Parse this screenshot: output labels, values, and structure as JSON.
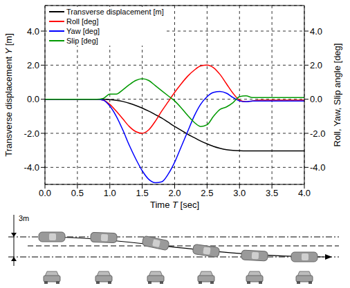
{
  "chart_data": {
    "type": "line",
    "x_label": "Time T [sec]",
    "y_label": "Transverse displacement Y [m]",
    "y2_label": "Roll, Yaw, Slip angle [deg]",
    "x": [
      0,
      0.1,
      0.2,
      0.3,
      0.4,
      0.5,
      0.6,
      0.7,
      0.8,
      0.9,
      1.0,
      1.1,
      1.2,
      1.3,
      1.4,
      1.5,
      1.6,
      1.7,
      1.8,
      1.9,
      2.0,
      2.1,
      2.2,
      2.3,
      2.4,
      2.5,
      2.6,
      2.7,
      2.8,
      2.9,
      3.0,
      3.1,
      3.2,
      3.3,
      3.4,
      3.5,
      3.6,
      3.7,
      3.8,
      3.9,
      4.0
    ],
    "xlim": [
      0,
      4
    ],
    "xticks": [
      {
        "value": 0,
        "label": "0.0"
      },
      {
        "value": 0.5,
        "label": "0.5"
      },
      {
        "value": 1,
        "label": "1.0"
      },
      {
        "value": 1.5,
        "label": "1.5"
      },
      {
        "value": 2,
        "label": "2.0"
      },
      {
        "value": 2.5,
        "label": "2.5"
      },
      {
        "value": 3,
        "label": "3.0"
      },
      {
        "value": 3.5,
        "label": "3.5"
      },
      {
        "value": 4,
        "label": "4.0"
      }
    ],
    "ylim": [
      -5,
      5.5
    ],
    "yticks": [
      {
        "value": -4,
        "label": "-4.0"
      },
      {
        "value": -2,
        "label": "-2.0"
      },
      {
        "value": 0,
        "label": "0.0"
      },
      {
        "value": 2,
        "label": "2.0"
      },
      {
        "value": 4,
        "label": "4.0"
      }
    ],
    "y2lim": [
      -5,
      5.5
    ],
    "y2ticks": [
      {
        "value": -4,
        "label": "-4.0"
      },
      {
        "value": -2,
        "label": "-2.0"
      },
      {
        "value": 0,
        "label": "0.0"
      },
      {
        "value": 2,
        "label": "2.0"
      },
      {
        "value": 4,
        "label": "4.0"
      }
    ],
    "grid": true,
    "legend": "upper left",
    "series": [
      {
        "name": "Transverse displacement [m]",
        "color": "#000000",
        "values": [
          0,
          0,
          0,
          0,
          0,
          0,
          0,
          0,
          0,
          0,
          -0.02,
          -0.06,
          -0.13,
          -0.24,
          -0.37,
          -0.52,
          -0.7,
          -0.9,
          -1.1,
          -1.35,
          -1.6,
          -1.82,
          -2.05,
          -2.25,
          -2.45,
          -2.62,
          -2.77,
          -2.88,
          -2.96,
          -3.0,
          -3.02,
          -3.03,
          -3.03,
          -3.03,
          -3.03,
          -3.03,
          -3.03,
          -3.03,
          -3.03,
          -3.03,
          -3.03
        ]
      },
      {
        "name": "Roll [deg]",
        "color": "#ff0000",
        "axis": "y2",
        "values": [
          0,
          0,
          0,
          0,
          0,
          0,
          0,
          0,
          0,
          -0.05,
          -0.3,
          -0.7,
          -1.15,
          -1.6,
          -1.9,
          -2.0,
          -1.8,
          -1.3,
          -0.7,
          -0.15,
          0.4,
          0.9,
          1.35,
          1.7,
          1.95,
          2.0,
          1.85,
          1.45,
          0.9,
          0.35,
          -0.05,
          -0.15,
          -0.1,
          -0.05,
          -0.05,
          -0.05,
          -0.05,
          -0.05,
          -0.05,
          -0.05,
          -0.05
        ]
      },
      {
        "name": "Yaw [deg]",
        "color": "#0000ff",
        "axis": "y2",
        "values": [
          0,
          0,
          0,
          0,
          0,
          0,
          0,
          0,
          0,
          -0.05,
          -0.4,
          -1.0,
          -1.8,
          -2.7,
          -3.5,
          -4.2,
          -4.7,
          -4.9,
          -4.85,
          -4.4,
          -3.7,
          -2.8,
          -1.9,
          -1.0,
          -0.3,
          0.15,
          0.4,
          0.45,
          0.35,
          0.1,
          -0.1,
          -0.15,
          -0.1,
          -0.1,
          -0.1,
          -0.1,
          -0.1,
          -0.1,
          -0.1,
          -0.1,
          -0.1
        ]
      },
      {
        "name": "Slip [deg]",
        "color": "#009900",
        "axis": "y2",
        "values": [
          0,
          0,
          0,
          0,
          0,
          0,
          0,
          0,
          0,
          0.05,
          0.3,
          0.3,
          0.55,
          0.85,
          1.1,
          1.2,
          1.1,
          0.8,
          0.5,
          0.2,
          -0.1,
          -0.5,
          -0.95,
          -1.35,
          -1.6,
          -1.5,
          -1.0,
          -0.6,
          -0.45,
          -0.2,
          0.15,
          0.2,
          0.1,
          0.1,
          0.1,
          0.1,
          0.1,
          0.1,
          0.1,
          0.1,
          0.1
        ]
      }
    ]
  },
  "diagram": {
    "label": "3m"
  }
}
